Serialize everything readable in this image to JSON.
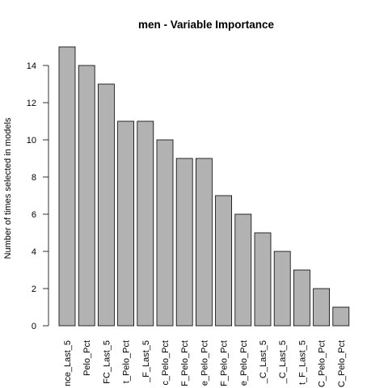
{
  "chart_data": {
    "type": "bar",
    "title": "men - Variable Importance",
    "xlabel": "",
    "ylabel": "Number of times selected in models",
    "ylim": [
      0,
      15
    ],
    "yticks": [
      0,
      2,
      4,
      6,
      8,
      10,
      12,
      14
    ],
    "categories": [
      "nce_Last_5",
      "Pelo_Pct",
      "FC_Last_5",
      "t_Pelo_Pct",
      "_F_Last_5",
      "c_Pelo_Pct",
      "F_Pelo_Pct",
      "e_Pelo_Pct",
      "F_Pelo_Pct",
      "e_Pelo_Pct",
      "_C_Last_5",
      "_C_Last_5",
      "t_F_Last_5",
      "C_Pelo_Pct",
      "C_Pelo_Pct"
    ],
    "values": [
      15,
      14,
      13,
      11,
      11,
      10,
      9,
      9,
      7,
      6,
      5,
      4,
      3,
      2,
      1
    ],
    "bar_color": "#b2b2b2",
    "grid": false,
    "legend": "none"
  }
}
